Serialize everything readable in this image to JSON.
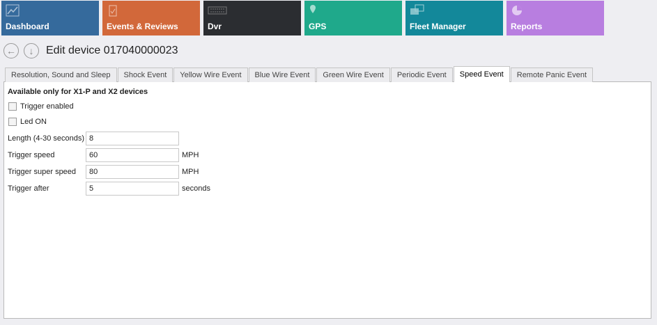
{
  "menu": [
    {
      "label": "Dashboard",
      "icon": "chart-line-icon",
      "color": "#356a9c"
    },
    {
      "label": "Events & Reviews",
      "icon": "clipboard-check-icon",
      "color": "#d2683a"
    },
    {
      "label": "Dvr",
      "icon": "dvr-icon",
      "color": "#2b2d31"
    },
    {
      "label": "GPS",
      "icon": "map-pin-icon",
      "color": "#1fa98b"
    },
    {
      "label": "Fleet Manager",
      "icon": "trucks-icon",
      "color": "#13889a"
    },
    {
      "label": "Reports",
      "icon": "pie-chart-icon",
      "color": "#b87ee0"
    }
  ],
  "page": {
    "title": "Edit device 017040000023"
  },
  "tabs": [
    {
      "label": "Resolution, Sound and Sleep"
    },
    {
      "label": "Shock Event"
    },
    {
      "label": "Yellow Wire Event"
    },
    {
      "label": "Blue Wire Event"
    },
    {
      "label": "Green Wire Event"
    },
    {
      "label": "Periodic Event"
    },
    {
      "label": "Speed Event",
      "selected": true
    },
    {
      "label": "Remote Panic Event"
    }
  ],
  "form": {
    "header": "Available only for X1-P and X2 devices",
    "trigger_enabled": {
      "label": "Trigger enabled",
      "checked": false
    },
    "led_on": {
      "label": "Led ON",
      "checked": false
    },
    "length": {
      "label": "Length (4-30 seconds)",
      "value": "8"
    },
    "trigger_speed": {
      "label": "Trigger speed",
      "value": "60",
      "unit": "MPH"
    },
    "super_speed": {
      "label": "Trigger super speed",
      "value": "80",
      "unit": "MPH"
    },
    "trigger_after": {
      "label": "Trigger after",
      "value": "5",
      "unit": "seconds"
    }
  }
}
